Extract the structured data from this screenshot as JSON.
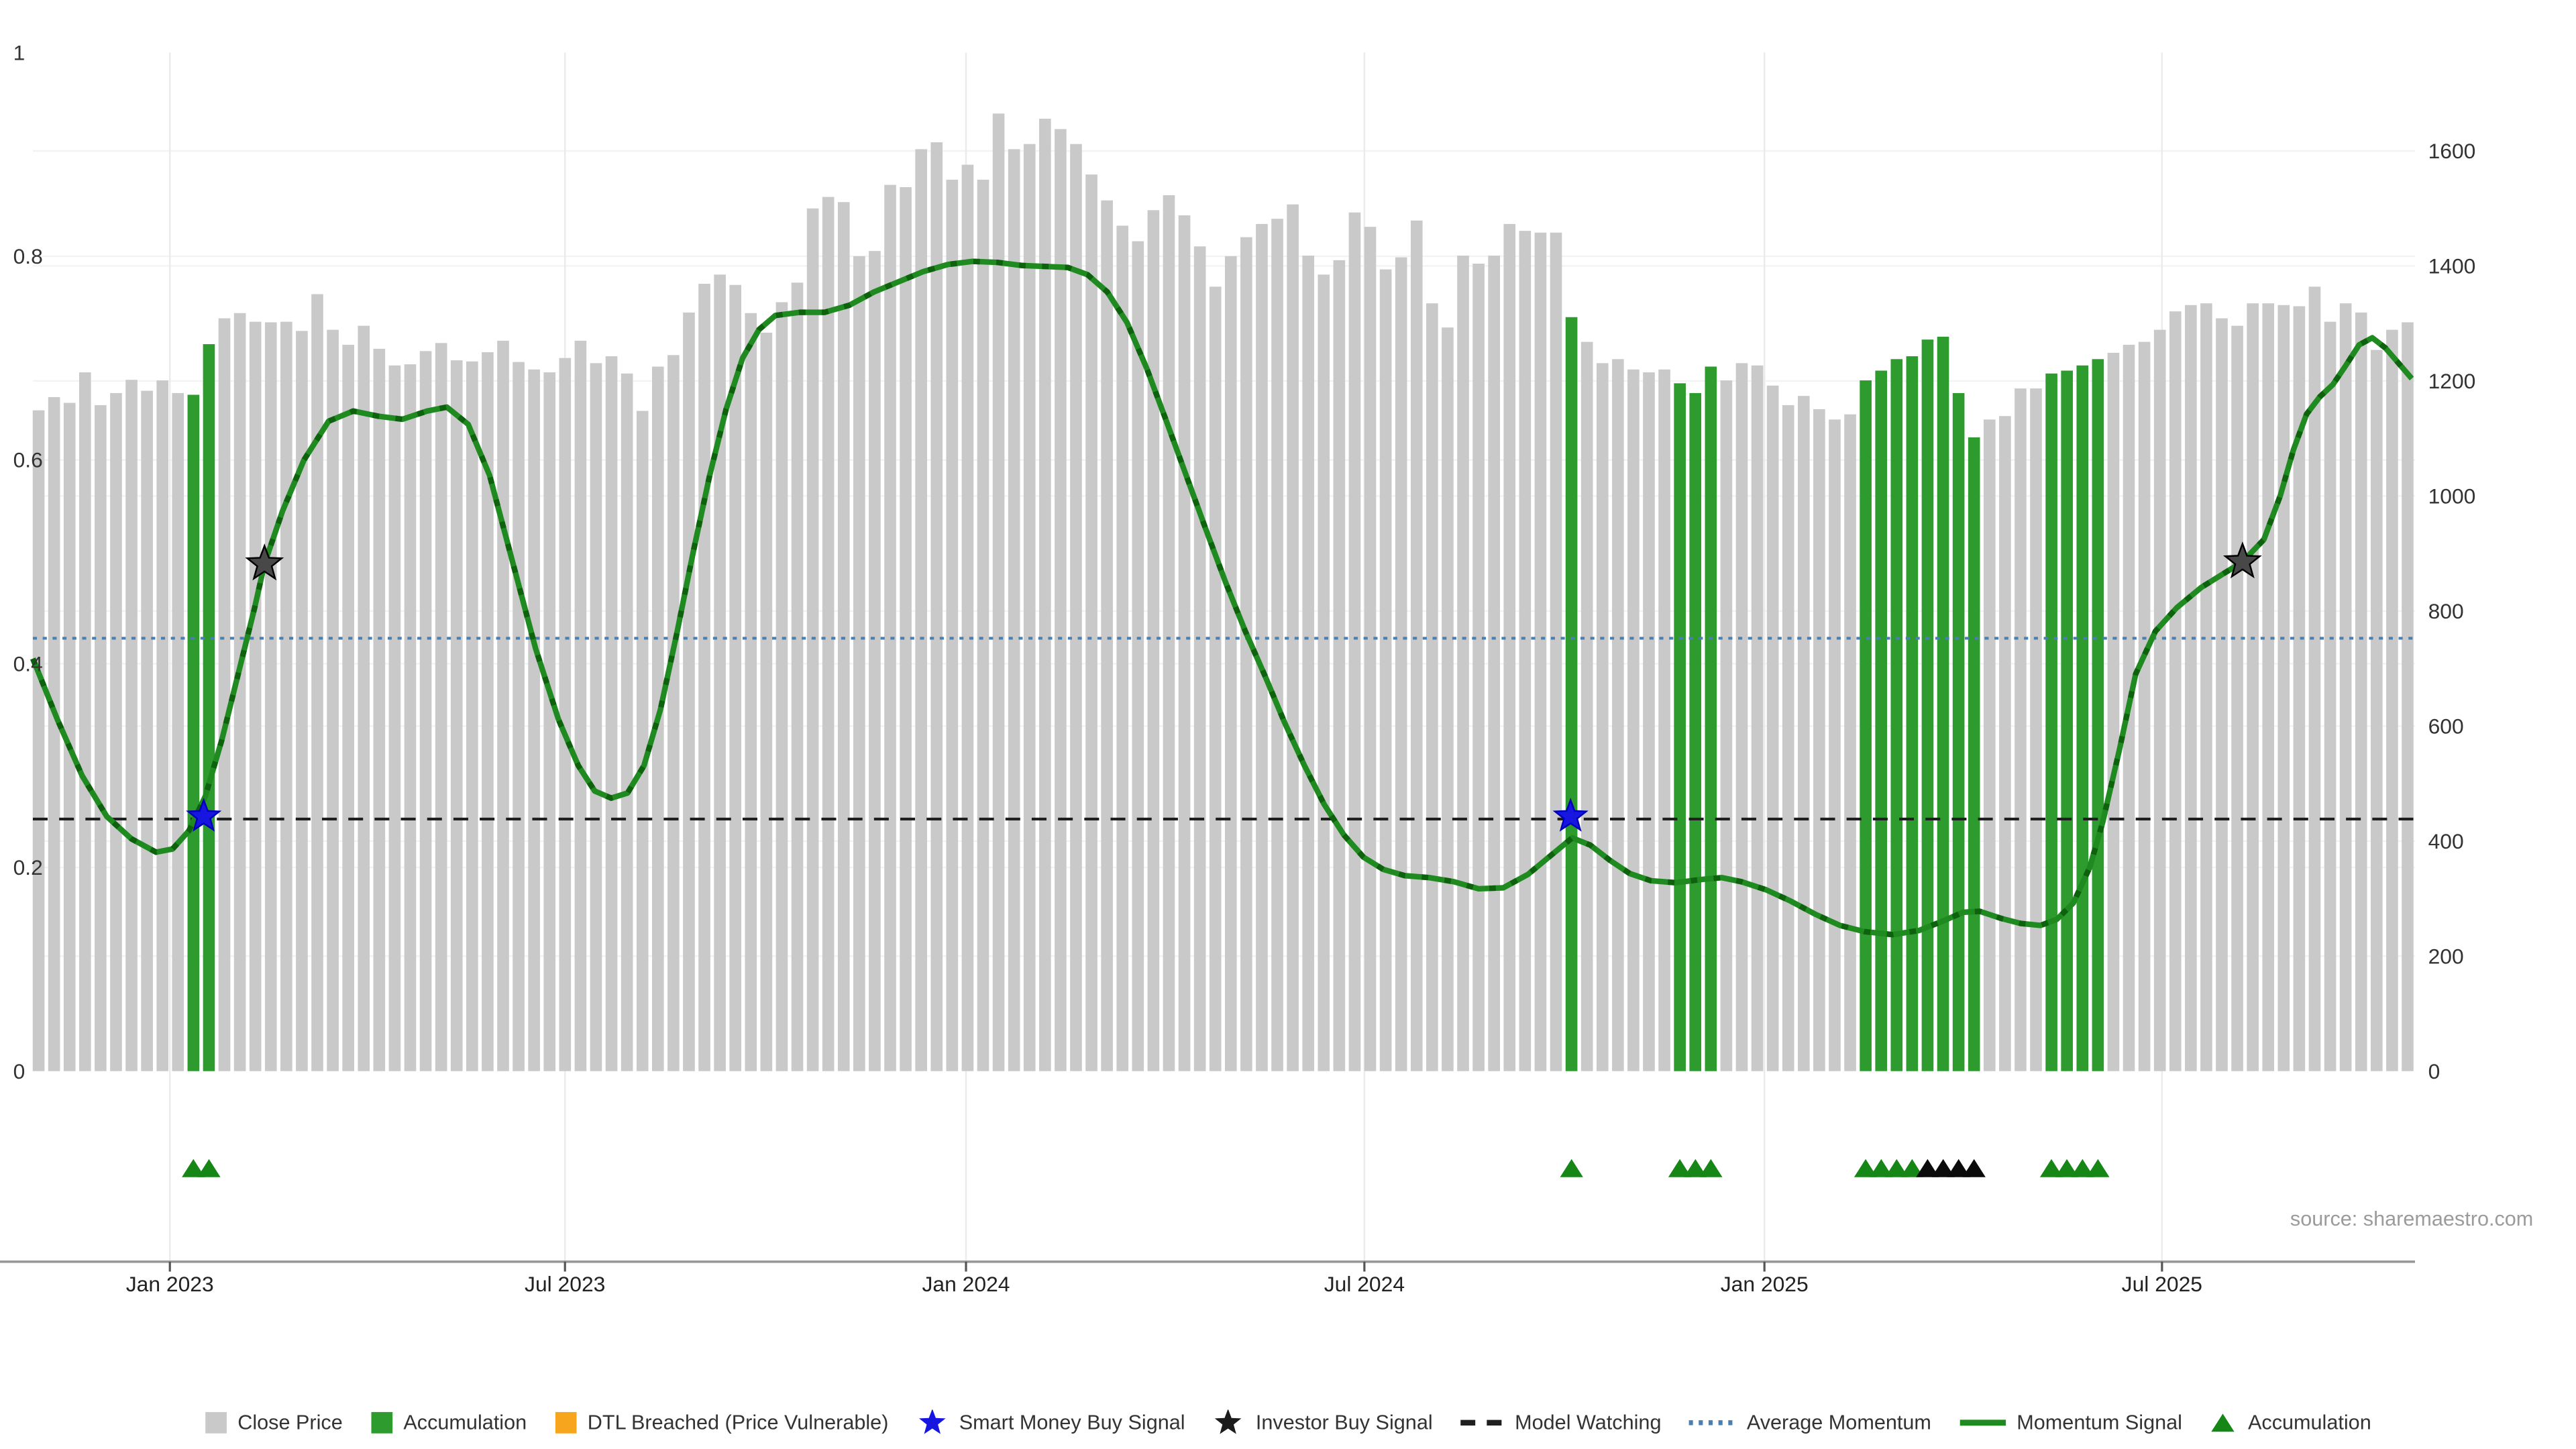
{
  "source": "source: sharemaestro.com",
  "colors": {
    "bar_gray": "#c9c9c9",
    "bar_green": "#2e9b2e",
    "momentum_line": "#1f8a1f",
    "momentum_dash": "#0c5a0c",
    "triangle_green": "#168716",
    "triangle_black": "#0b0b0b",
    "smart_star": "#1616e0",
    "investor_star": "#484848",
    "model_watching": "#1f1f1f",
    "average_momentum": "#4a80b0",
    "dtl_orange": "#f6a51d",
    "grid": "#f1f4f6",
    "vgrid": "#ebebeb",
    "axis_line": "#999999",
    "tick_text": "#222222"
  },
  "legend": [
    {
      "label": "Close Price",
      "swatch": "square",
      "color": "#c9c9c9"
    },
    {
      "label": "Accumulation",
      "swatch": "square",
      "color": "#2e9b2e"
    },
    {
      "label": "DTL Breached (Price Vulnerable)",
      "swatch": "square",
      "color": "#f6a51d"
    },
    {
      "label": "Smart Money Buy Signal",
      "swatch": "star",
      "color": "#1616e0"
    },
    {
      "label": "Investor Buy Signal",
      "swatch": "star",
      "color": "#1c1c1c"
    },
    {
      "label": "Model Watching",
      "swatch": "dash",
      "color": "#1f1f1f"
    },
    {
      "label": "Average Momentum",
      "swatch": "dots",
      "color": "#4a80b0"
    },
    {
      "label": "Momentum Signal",
      "swatch": "line",
      "color": "#1f8a1f"
    },
    {
      "label": "Accumulation",
      "swatch": "triangle",
      "color": "#168716"
    }
  ],
  "chart_data": {
    "type": "bar",
    "title": "",
    "xlabel": "",
    "ylabel": "",
    "grid": true,
    "legend_position": "bottom-center",
    "left_axis": {
      "range": [
        0,
        1
      ],
      "ticks": [
        0,
        0.2,
        0.4,
        0.6,
        0.8,
        1
      ]
    },
    "right_axis": {
      "range": [
        0,
        1771
      ],
      "ticks": [
        0,
        200,
        400,
        600,
        800,
        1000,
        1200,
        1400,
        1600
      ]
    },
    "x_ticks": [
      {
        "label": "Jan 2023",
        "x": 103.4
      },
      {
        "label": "Jul 2023",
        "x": 343.9
      },
      {
        "label": "Jan 2024",
        "x": 588.0
      },
      {
        "label": "Jul 2024",
        "x": 830.5
      },
      {
        "label": "Jan 2025",
        "x": 1074.0
      },
      {
        "label": "Jul 2025",
        "x": 1316.0
      }
    ],
    "series": [
      {
        "name": "Close Price",
        "axis": "right",
        "values": [
          1149,
          1172,
          1162,
          1215,
          1158,
          1179,
          1202,
          1183,
          1201,
          1179,
          1176,
          1264,
          1309,
          1318,
          1303,
          1302,
          1303,
          1287,
          1351,
          1289,
          1263,
          1296,
          1256,
          1227,
          1229,
          1252,
          1266,
          1236,
          1234,
          1250,
          1270,
          1233,
          1220,
          1215,
          1240,
          1270,
          1231,
          1243,
          1213,
          1148,
          1225,
          1245,
          1319,
          1369,
          1385,
          1367,
          1318,
          1284,
          1337,
          1371,
          1500,
          1520,
          1511,
          1417,
          1426,
          1541,
          1537,
          1603,
          1615,
          1550,
          1576,
          1550,
          1665,
          1603,
          1612,
          1656,
          1638,
          1612,
          1559,
          1514,
          1470,
          1443,
          1497,
          1523,
          1488,
          1434,
          1364,
          1417,
          1450,
          1473,
          1482,
          1507,
          1418,
          1385,
          1410,
          1493,
          1468,
          1394,
          1415,
          1479,
          1335,
          1293,
          1418,
          1404,
          1418,
          1473,
          1461,
          1458,
          1458,
          1311,
          1268,
          1231,
          1238,
          1220,
          1215,
          1220,
          1196,
          1179,
          1225,
          1201,
          1231,
          1227,
          1192,
          1158,
          1174,
          1151,
          1133,
          1142,
          1201,
          1218,
          1238,
          1243,
          1272,
          1277,
          1179,
          1102,
          1133,
          1139,
          1187,
          1187,
          1213,
          1218,
          1227,
          1238,
          1249,
          1263,
          1268,
          1289,
          1321,
          1332,
          1335,
          1309,
          1296,
          1335,
          1335,
          1332,
          1330,
          1364,
          1303,
          1335,
          1319,
          1254,
          1289,
          1302
        ]
      }
    ],
    "accumulation_bar_indices": [
      10,
      11,
      99,
      106,
      107,
      108,
      118,
      119,
      120,
      121,
      122,
      123,
      124,
      125,
      130,
      131,
      132,
      133
    ],
    "momentum_signal": [
      [
        20,
        0.405
      ],
      [
        35,
        0.345
      ],
      [
        50,
        0.29
      ],
      [
        65,
        0.25
      ],
      [
        80,
        0.228
      ],
      [
        95,
        0.215
      ],
      [
        105,
        0.218
      ],
      [
        115,
        0.236
      ],
      [
        125,
        0.27
      ],
      [
        135,
        0.325
      ],
      [
        145,
        0.39
      ],
      [
        155,
        0.455
      ],
      [
        161,
        0.498
      ],
      [
        172,
        0.55
      ],
      [
        185,
        0.6
      ],
      [
        200,
        0.638
      ],
      [
        215,
        0.648
      ],
      [
        230,
        0.643
      ],
      [
        245,
        0.64
      ],
      [
        260,
        0.648
      ],
      [
        272,
        0.652
      ],
      [
        285,
        0.635
      ],
      [
        298,
        0.585
      ],
      [
        312,
        0.5
      ],
      [
        326,
        0.415
      ],
      [
        340,
        0.345
      ],
      [
        352,
        0.3
      ],
      [
        362,
        0.275
      ],
      [
        372,
        0.268
      ],
      [
        382,
        0.273
      ],
      [
        392,
        0.3
      ],
      [
        402,
        0.355
      ],
      [
        412,
        0.43
      ],
      [
        422,
        0.51
      ],
      [
        432,
        0.585
      ],
      [
        442,
        0.65
      ],
      [
        452,
        0.7
      ],
      [
        462,
        0.728
      ],
      [
        472,
        0.742
      ],
      [
        487,
        0.745
      ],
      [
        502,
        0.745
      ],
      [
        517,
        0.752
      ],
      [
        532,
        0.765
      ],
      [
        547,
        0.775
      ],
      [
        562,
        0.785
      ],
      [
        577,
        0.792
      ],
      [
        592,
        0.795
      ],
      [
        607,
        0.794
      ],
      [
        622,
        0.791
      ],
      [
        637,
        0.79
      ],
      [
        650,
        0.789
      ],
      [
        662,
        0.782
      ],
      [
        674,
        0.765
      ],
      [
        686,
        0.735
      ],
      [
        698,
        0.69
      ],
      [
        710,
        0.638
      ],
      [
        722,
        0.585
      ],
      [
        734,
        0.532
      ],
      [
        746,
        0.48
      ],
      [
        758,
        0.432
      ],
      [
        770,
        0.388
      ],
      [
        782,
        0.342
      ],
      [
        794,
        0.3
      ],
      [
        806,
        0.262
      ],
      [
        818,
        0.232
      ],
      [
        830,
        0.21
      ],
      [
        842,
        0.198
      ],
      [
        855,
        0.192
      ],
      [
        870,
        0.19
      ],
      [
        885,
        0.186
      ],
      [
        900,
        0.179
      ],
      [
        915,
        0.18
      ],
      [
        930,
        0.193
      ],
      [
        945,
        0.213
      ],
      [
        957,
        0.229
      ],
      [
        968,
        0.222
      ],
      [
        980,
        0.207
      ],
      [
        992,
        0.194
      ],
      [
        1005,
        0.187
      ],
      [
        1020,
        0.185
      ],
      [
        1035,
        0.188
      ],
      [
        1048,
        0.19
      ],
      [
        1060,
        0.186
      ],
      [
        1075,
        0.178
      ],
      [
        1090,
        0.167
      ],
      [
        1105,
        0.154
      ],
      [
        1120,
        0.143
      ],
      [
        1135,
        0.137
      ],
      [
        1152,
        0.134
      ],
      [
        1168,
        0.138
      ],
      [
        1182,
        0.147
      ],
      [
        1195,
        0.156
      ],
      [
        1205,
        0.157
      ],
      [
        1218,
        0.15
      ],
      [
        1230,
        0.145
      ],
      [
        1242,
        0.143
      ],
      [
        1252,
        0.149
      ],
      [
        1262,
        0.165
      ],
      [
        1272,
        0.2
      ],
      [
        1280,
        0.245
      ],
      [
        1290,
        0.315
      ],
      [
        1300,
        0.39
      ],
      [
        1312,
        0.432
      ],
      [
        1325,
        0.455
      ],
      [
        1340,
        0.475
      ],
      [
        1355,
        0.49
      ],
      [
        1365,
        0.5
      ],
      [
        1378,
        0.522
      ],
      [
        1388,
        0.565
      ],
      [
        1396,
        0.61
      ],
      [
        1404,
        0.645
      ],
      [
        1412,
        0.662
      ],
      [
        1420,
        0.674
      ],
      [
        1428,
        0.693
      ],
      [
        1436,
        0.713
      ],
      [
        1444,
        0.72
      ],
      [
        1452,
        0.71
      ],
      [
        1460,
        0.695
      ],
      [
        1468,
        0.68
      ]
    ],
    "average_momentum_level": 0.425,
    "model_watching_level": 0.2475,
    "stars": [
      {
        "signal": "smart-money",
        "x": 124,
        "v": 0.25
      },
      {
        "signal": "investor",
        "x": 161,
        "v": 0.498
      },
      {
        "signal": "smart-money",
        "x": 956,
        "v": 0.25
      },
      {
        "signal": "investor",
        "x": 1365,
        "v": 0.5
      }
    ],
    "triangle_markers": [
      {
        "bar": 10,
        "color": "green"
      },
      {
        "bar": 11,
        "color": "green"
      },
      {
        "bar": 99,
        "color": "green"
      },
      {
        "bar": 106,
        "color": "green"
      },
      {
        "bar": 107,
        "color": "green"
      },
      {
        "bar": 108,
        "color": "green"
      },
      {
        "bar": 118,
        "color": "green"
      },
      {
        "bar": 119,
        "color": "green"
      },
      {
        "bar": 120,
        "color": "green"
      },
      {
        "bar": 121,
        "color": "green"
      },
      {
        "bar": 122,
        "color": "black"
      },
      {
        "bar": 123,
        "color": "black"
      },
      {
        "bar": 124,
        "color": "black"
      },
      {
        "bar": 125,
        "color": "black"
      },
      {
        "bar": 130,
        "color": "green"
      },
      {
        "bar": 131,
        "color": "green"
      },
      {
        "bar": 132,
        "color": "green"
      },
      {
        "bar": 133,
        "color": "green"
      }
    ],
    "layout": {
      "plot_x0": 20,
      "plot_x1": 1470,
      "y_top": 32,
      "y_base": 652,
      "bar0_x": 23.5,
      "bar_step": 9.4248,
      "bar_width": 7.2,
      "marker_lane_y": 711,
      "axis_line_y": 768,
      "x_label_y": 782
    }
  }
}
